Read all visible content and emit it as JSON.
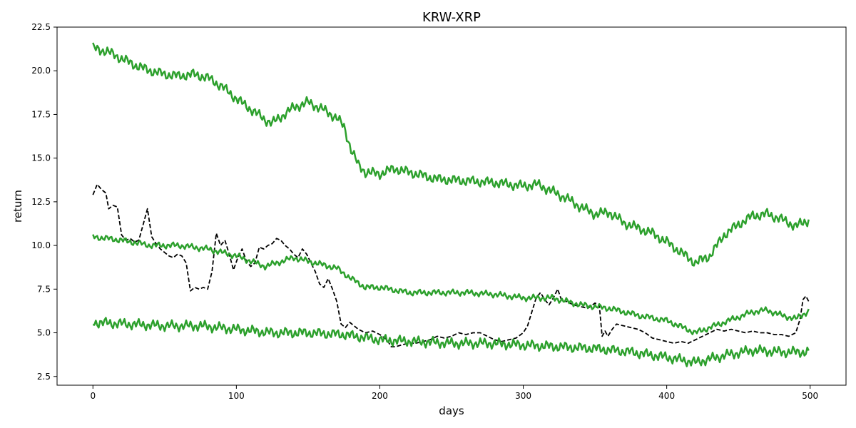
{
  "chart_data": {
    "type": "line",
    "title": "KRW-XRP",
    "xlabel": "days",
    "ylabel": "return",
    "xlim": [
      -25,
      525
    ],
    "ylim": [
      2.0,
      22.5
    ],
    "xticks": [
      0,
      100,
      200,
      300,
      400,
      500
    ],
    "yticks": [
      2.5,
      5.0,
      7.5,
      10.0,
      12.5,
      15.0,
      17.5,
      20.0,
      22.5
    ],
    "ytick_labels": [
      "2.5",
      "5.0",
      "7.5",
      "10.0",
      "12.5",
      "15.0",
      "17.5",
      "20.0",
      "22.5"
    ],
    "grid": false,
    "series": [
      {
        "style": "dashed",
        "color": "#000000",
        "x": [
          0,
          3,
          6,
          9,
          11,
          14,
          17,
          20,
          23,
          26,
          29,
          32,
          35,
          38,
          41,
          44,
          47,
          50,
          53,
          56,
          59,
          62,
          65,
          68,
          71,
          74,
          77,
          80,
          83,
          86,
          89,
          92,
          95,
          98,
          101,
          104,
          107,
          110,
          113,
          116,
          119,
          122,
          125,
          128,
          131,
          134,
          137,
          140,
          143,
          146,
          149,
          152,
          155,
          158,
          161,
          164,
          167,
          170,
          173,
          176,
          179,
          182,
          185,
          190,
          195,
          200,
          205,
          208,
          211,
          215,
          220,
          225,
          230,
          235,
          240,
          245,
          250,
          255,
          260,
          265,
          270,
          275,
          280,
          285,
          290,
          295,
          300,
          303,
          306,
          309,
          312,
          315,
          318,
          321,
          324,
          327,
          330,
          335,
          340,
          345,
          350,
          353,
          355,
          357,
          359,
          362,
          365,
          370,
          375,
          380,
          385,
          390,
          395,
          400,
          405,
          410,
          415,
          420,
          425,
          430,
          435,
          440,
          445,
          450,
          455,
          460,
          465,
          470,
          475,
          480,
          485,
          490,
          493,
          495,
          497,
          499
        ],
        "y": [
          12.9,
          13.5,
          13.2,
          13.0,
          12.1,
          12.3,
          12.2,
          10.6,
          10.3,
          10.4,
          10.2,
          10.3,
          11.2,
          12.1,
          10.5,
          10.1,
          9.8,
          9.6,
          9.4,
          9.3,
          9.5,
          9.4,
          9.0,
          7.4,
          7.6,
          7.5,
          7.6,
          7.5,
          8.5,
          10.7,
          10.0,
          10.3,
          9.5,
          8.6,
          9.3,
          9.8,
          9.1,
          8.8,
          9.0,
          9.9,
          9.8,
          10.0,
          10.1,
          10.4,
          10.3,
          10.0,
          9.8,
          9.5,
          9.3,
          9.8,
          9.5,
          9.0,
          8.5,
          7.8,
          7.6,
          8.1,
          7.5,
          6.8,
          5.5,
          5.3,
          5.6,
          5.4,
          5.2,
          5.0,
          5.1,
          4.9,
          4.6,
          4.2,
          4.2,
          4.3,
          4.4,
          4.4,
          4.5,
          4.6,
          4.8,
          4.7,
          4.8,
          5.0,
          4.9,
          5.0,
          5.0,
          4.8,
          4.6,
          4.5,
          4.6,
          4.7,
          5.0,
          5.4,
          6.2,
          7.0,
          7.3,
          6.9,
          6.6,
          7.0,
          7.5,
          6.8,
          6.8,
          6.6,
          6.5,
          6.4,
          6.7,
          6.6,
          4.8,
          5.1,
          4.8,
          5.2,
          5.5,
          5.4,
          5.3,
          5.2,
          5.0,
          4.7,
          4.6,
          4.5,
          4.4,
          4.5,
          4.4,
          4.6,
          4.8,
          5.0,
          5.2,
          5.1,
          5.2,
          5.1,
          5.0,
          5.1,
          5.0,
          5.0,
          4.9,
          4.9,
          4.8,
          5.0,
          5.8,
          6.9,
          7.1,
          6.8
        ]
      },
      {
        "style": "solid",
        "color": "#2ca02c",
        "x": [
          0,
          10,
          20,
          30,
          40,
          50,
          60,
          70,
          80,
          90,
          100,
          110,
          120,
          125,
          130,
          140,
          150,
          160,
          170,
          175,
          180,
          185,
          190,
          200,
          210,
          220,
          240,
          260,
          280,
          300,
          310,
          320,
          330,
          340,
          350,
          360,
          370,
          380,
          390,
          400,
          410,
          420,
          430,
          440,
          450,
          460,
          470,
          480,
          490,
          500
        ],
        "y": [
          21.3,
          21.1,
          20.7,
          20.3,
          20.0,
          19.8,
          19.7,
          19.8,
          19.6,
          19.1,
          18.4,
          17.8,
          17.2,
          17.0,
          17.3,
          17.9,
          18.2,
          17.8,
          17.3,
          16.8,
          15.5,
          14.6,
          14.2,
          14.1,
          14.4,
          14.2,
          13.8,
          13.7,
          13.6,
          13.4,
          13.5,
          13.1,
          12.7,
          12.2,
          11.8,
          11.9,
          11.3,
          11.0,
          10.7,
          10.2,
          9.6,
          9.0,
          9.4,
          10.6,
          11.2,
          11.7,
          11.8,
          11.5,
          11.1,
          11.5
        ],
        "amp": 0.3
      },
      {
        "style": "solid",
        "color": "#2ca02c",
        "x": [
          0,
          20,
          40,
          60,
          80,
          100,
          120,
          140,
          160,
          170,
          180,
          190,
          200,
          220,
          240,
          260,
          280,
          300,
          320,
          340,
          360,
          380,
          400,
          420,
          440,
          460,
          470,
          480,
          490,
          500
        ],
        "y": [
          10.5,
          10.3,
          10.0,
          10.0,
          9.8,
          9.4,
          8.8,
          9.3,
          8.9,
          8.7,
          8.1,
          7.6,
          7.6,
          7.3,
          7.3,
          7.3,
          7.2,
          7.0,
          7.0,
          6.6,
          6.4,
          6.0,
          5.7,
          5.0,
          5.6,
          6.2,
          6.3,
          6.0,
          5.8,
          6.3
        ],
        "amp": 0.18
      },
      {
        "style": "solid",
        "color": "#2ca02c",
        "x": [
          0,
          25,
          50,
          75,
          100,
          125,
          150,
          175,
          200,
          225,
          250,
          275,
          300,
          325,
          350,
          375,
          400,
          420,
          440,
          460,
          480,
          500
        ],
        "y": [
          5.6,
          5.5,
          5.4,
          5.4,
          5.2,
          5.0,
          5.0,
          4.9,
          4.6,
          4.5,
          4.4,
          4.4,
          4.3,
          4.2,
          4.1,
          3.9,
          3.6,
          3.3,
          3.7,
          4.0,
          3.9,
          3.9
        ],
        "amp": 0.3
      }
    ]
  }
}
